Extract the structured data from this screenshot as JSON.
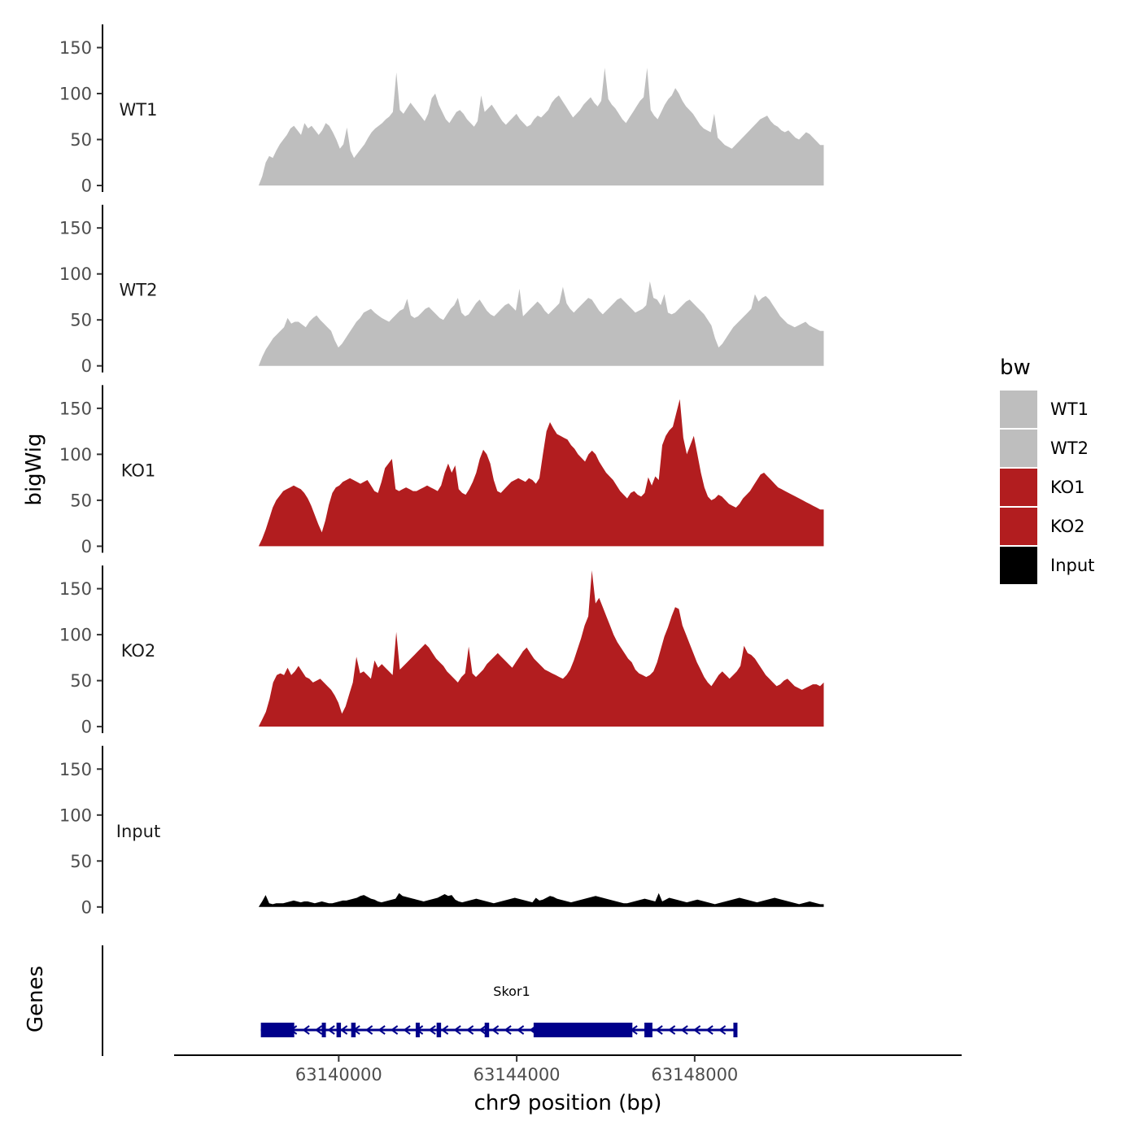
{
  "chart_data": {
    "type": "area",
    "title": "",
    "ylabel": "bigWig",
    "xlabel": "chr9 position (bp)",
    "ylim": [
      0,
      170
    ],
    "yticks": [
      0,
      50,
      100,
      150
    ],
    "xlim": [
      63136300,
      63154000
    ],
    "xticks": [
      63140000,
      63144000,
      63148000
    ],
    "x_start": 63138200,
    "x_end": 63150900,
    "grid": false,
    "legend": {
      "title": "bw",
      "placement": "right",
      "entries": [
        {
          "label": "WT1",
          "color": "#bebebe"
        },
        {
          "label": "WT2",
          "color": "#bebebe"
        },
        {
          "label": "KO1",
          "color": "#b21d1f"
        },
        {
          "label": "KO2",
          "color": "#b21d1f"
        },
        {
          "label": "Input",
          "color": "#000000"
        }
      ]
    },
    "tracks": [
      {
        "name": "WT1",
        "color": "#bebebe",
        "values": [
          0,
          10,
          25,
          32,
          30,
          38,
          45,
          50,
          55,
          62,
          65,
          60,
          55,
          58,
          62,
          65,
          60,
          55,
          60,
          68,
          65,
          58,
          50,
          40,
          45,
          48,
          38,
          30,
          35,
          40,
          45,
          52,
          58,
          62,
          65,
          68,
          72,
          75,
          80,
          85,
          82,
          78,
          84,
          90,
          85,
          80,
          75,
          70,
          78,
          95,
          100,
          88,
          80,
          72,
          68,
          74,
          80,
          82,
          78,
          72,
          68,
          64,
          70,
          76,
          80,
          84,
          88,
          82,
          76,
          70,
          66,
          70,
          74,
          78,
          72,
          68,
          64,
          66,
          72,
          76,
          74,
          78,
          82,
          90,
          95,
          98,
          92,
          86,
          80,
          74,
          78,
          82,
          88,
          92,
          96,
          90,
          86,
          92,
          98,
          94,
          88,
          84,
          78,
          72,
          68,
          74,
          80,
          86,
          92,
          96,
          88,
          82,
          76,
          72,
          80,
          88,
          94,
          98,
          106,
          100,
          92,
          86,
          82,
          78,
          72,
          66,
          62,
          60,
          58,
          56,
          52,
          48,
          44,
          42,
          40,
          44,
          48,
          52,
          56,
          60,
          64,
          68,
          72,
          74,
          76,
          70,
          66,
          64,
          60,
          58,
          60,
          56,
          52,
          50,
          54,
          58,
          56,
          52,
          48,
          44,
          44
        ],
        "peaks": [
          [
            0.08,
            10
          ],
          [
            0.155,
            15
          ],
          [
            0.245,
            38
          ],
          [
            0.395,
            22
          ],
          [
            0.61,
            30
          ],
          [
            0.69,
            40
          ],
          [
            0.805,
            22
          ]
        ]
      },
      {
        "name": "WT2",
        "color": "#bebebe",
        "values": [
          0,
          10,
          18,
          24,
          30,
          34,
          38,
          42,
          44,
          46,
          48,
          48,
          45,
          42,
          48,
          52,
          55,
          50,
          46,
          42,
          38,
          28,
          20,
          24,
          30,
          36,
          42,
          48,
          52,
          58,
          60,
          62,
          58,
          55,
          52,
          50,
          48,
          52,
          56,
          60,
          62,
          58,
          55,
          52,
          54,
          58,
          62,
          64,
          60,
          56,
          52,
          50,
          56,
          62,
          66,
          62,
          58,
          54,
          56,
          62,
          68,
          72,
          66,
          60,
          56,
          54,
          58,
          62,
          66,
          68,
          64,
          60,
          56,
          54,
          58,
          62,
          66,
          70,
          66,
          60,
          56,
          60,
          64,
          68,
          72,
          68,
          62,
          58,
          62,
          66,
          70,
          74,
          72,
          66,
          60,
          56,
          60,
          64,
          68,
          72,
          74,
          70,
          66,
          62,
          58,
          60,
          62,
          66,
          70,
          74,
          72,
          66,
          62,
          58,
          56,
          58,
          62,
          66,
          70,
          72,
          68,
          64,
          60,
          56,
          50,
          44,
          30,
          20,
          24,
          30,
          36,
          42,
          46,
          50,
          54,
          58,
          62,
          66,
          70,
          74,
          76,
          72,
          66,
          60,
          54,
          50,
          46,
          44,
          42,
          44,
          46,
          48,
          44,
          42,
          40,
          38,
          38
        ],
        "peaks": [
          [
            0.05,
            8
          ],
          [
            0.265,
            15
          ],
          [
            0.355,
            12
          ],
          [
            0.46,
            28
          ],
          [
            0.54,
            14
          ],
          [
            0.69,
            22
          ],
          [
            0.715,
            16
          ],
          [
            0.88,
            12
          ]
        ]
      },
      {
        "name": "KO1",
        "color": "#b21d1f",
        "values": [
          0,
          8,
          18,
          30,
          42,
          50,
          55,
          60,
          62,
          64,
          66,
          64,
          62,
          58,
          52,
          44,
          34,
          24,
          15,
          28,
          45,
          58,
          64,
          66,
          70,
          72,
          74,
          72,
          70,
          68,
          70,
          72,
          66,
          60,
          58,
          70,
          85,
          90,
          75,
          62,
          60,
          62,
          64,
          62,
          60,
          60,
          62,
          64,
          66,
          64,
          62,
          60,
          66,
          80,
          90,
          80,
          70,
          62,
          58,
          56,
          62,
          70,
          80,
          95,
          105,
          100,
          90,
          72,
          60,
          58,
          62,
          66,
          70,
          72,
          74,
          72,
          70,
          74,
          72,
          68,
          74,
          100,
          125,
          135,
          128,
          122,
          120,
          118,
          116,
          110,
          106,
          100,
          96,
          92,
          100,
          104,
          100,
          92,
          86,
          80,
          76,
          72,
          66,
          60,
          56,
          52,
          58,
          60,
          56,
          54,
          58,
          60,
          66,
          76,
          90,
          110,
          120,
          126,
          130,
          145,
          160,
          118,
          100,
          110,
          120,
          100,
          80,
          64,
          54,
          50,
          52,
          56,
          54,
          50,
          46,
          44,
          42,
          46,
          52,
          56,
          60,
          66,
          72,
          78,
          80,
          76,
          72,
          68,
          64,
          62,
          60,
          58,
          56,
          54,
          52,
          50,
          48,
          46,
          44,
          42,
          40,
          40
        ],
        "peaks": [
          [
            0.235,
            20
          ],
          [
            0.345,
            18
          ],
          [
            0.69,
            15
          ],
          [
            0.705,
            -18
          ]
        ]
      },
      {
        "name": "KO2",
        "color": "#b21d1f",
        "values": [
          0,
          8,
          16,
          30,
          48,
          56,
          58,
          56,
          54,
          56,
          60,
          66,
          60,
          54,
          52,
          48,
          50,
          52,
          48,
          44,
          40,
          34,
          26,
          14,
          22,
          35,
          48,
          54,
          58,
          60,
          56,
          52,
          58,
          64,
          68,
          64,
          60,
          56,
          58,
          62,
          66,
          70,
          74,
          78,
          82,
          86,
          90,
          86,
          80,
          74,
          70,
          66,
          60,
          56,
          52,
          48,
          54,
          58,
          62,
          58,
          54,
          58,
          62,
          68,
          72,
          76,
          80,
          76,
          72,
          68,
          64,
          70,
          76,
          82,
          86,
          80,
          74,
          70,
          66,
          62,
          60,
          58,
          56,
          54,
          52,
          56,
          62,
          72,
          84,
          96,
          110,
          120,
          128,
          134,
          140,
          130,
          120,
          110,
          100,
          92,
          86,
          80,
          74,
          70,
          62,
          58,
          56,
          54,
          56,
          60,
          70,
          84,
          98,
          108,
          120,
          130,
          128,
          110,
          100,
          90,
          80,
          70,
          62,
          54,
          48,
          44,
          50,
          56,
          60,
          56,
          52,
          56,
          60,
          66,
          74,
          80,
          78,
          74,
          68,
          62,
          56,
          52,
          48,
          44,
          46,
          50,
          52,
          48,
          44,
          42,
          40,
          42,
          44,
          46,
          46,
          44,
          48
        ],
        "peaks": [
          [
            0.05,
            10
          ],
          [
            0.175,
            22
          ],
          [
            0.205,
            14
          ],
          [
            0.245,
            45
          ],
          [
            0.37,
            25
          ],
          [
            0.59,
            45
          ],
          [
            0.86,
            14
          ]
        ]
      },
      {
        "name": "Input",
        "color": "#000000",
        "values": [
          0,
          6,
          8,
          4,
          3,
          4,
          4,
          4,
          5,
          6,
          7,
          6,
          5,
          6,
          6,
          5,
          4,
          5,
          6,
          5,
          4,
          4,
          5,
          6,
          7,
          7,
          8,
          9,
          10,
          12,
          13,
          11,
          9,
          8,
          6,
          5,
          6,
          7,
          8,
          9,
          10,
          12,
          11,
          10,
          9,
          8,
          7,
          6,
          7,
          8,
          9,
          10,
          12,
          14,
          12,
          10,
          8,
          6,
          5,
          6,
          7,
          8,
          9,
          8,
          7,
          6,
          5,
          4,
          5,
          6,
          7,
          8,
          9,
          10,
          9,
          8,
          7,
          6,
          5,
          6,
          7,
          8,
          10,
          12,
          11,
          9,
          8,
          7,
          6,
          5,
          6,
          7,
          8,
          9,
          10,
          11,
          12,
          11,
          10,
          9,
          8,
          7,
          6,
          5,
          4,
          4,
          5,
          6,
          7,
          8,
          9,
          8,
          7,
          6,
          5,
          6,
          8,
          10,
          9,
          8,
          7,
          6,
          5,
          6,
          7,
          8,
          7,
          6,
          5,
          4,
          3,
          4,
          5,
          6,
          7,
          8,
          9,
          10,
          9,
          8,
          7,
          6,
          5,
          6,
          7,
          8,
          9,
          10,
          9,
          8,
          7,
          6,
          5,
          4,
          3,
          4,
          5,
          6,
          5,
          4,
          3,
          3
        ],
        "peaks": [
          [
            0.015,
            5
          ],
          [
            0.25,
            5
          ],
          [
            0.34,
            3
          ],
          [
            0.49,
            4
          ],
          [
            0.705,
            10
          ]
        ]
      }
    ],
    "gene": {
      "name": "Skor1",
      "track_label": "Genes",
      "color": "#00008b",
      "start": 63138250,
      "end": 63148950,
      "exons": [
        [
          63138250,
          63139000
        ],
        [
          63139620,
          63139700
        ],
        [
          63139950,
          63140050
        ],
        [
          63140280,
          63140380
        ],
        [
          63141730,
          63141810
        ],
        [
          63142200,
          63142300
        ],
        [
          63143280,
          63143380
        ],
        [
          63144380,
          63146600
        ],
        [
          63146870,
          63147050
        ],
        [
          63148870,
          63148950
        ]
      ]
    }
  }
}
